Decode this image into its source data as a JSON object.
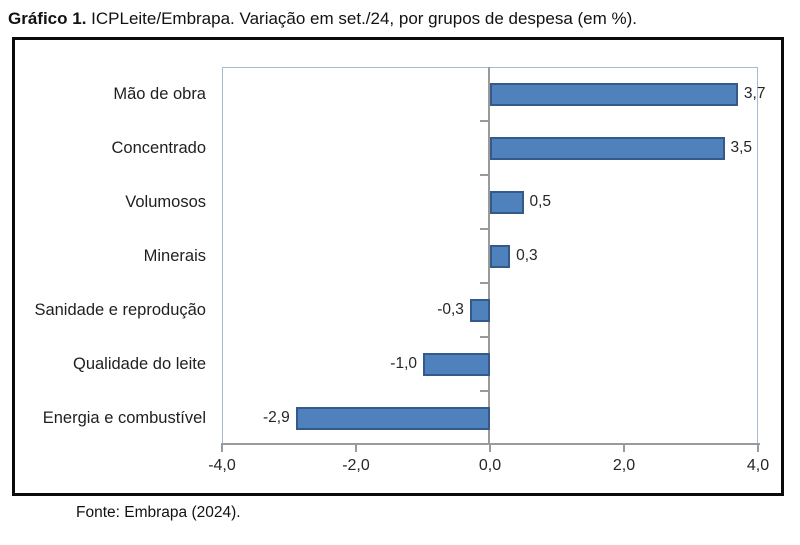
{
  "title": {
    "prefix": "Gráfico 1.",
    "rest": " ICPLeite/Embrapa. Variação em set./24, por grupos de despesa (em %)."
  },
  "footer": "Fonte: Embrapa (2024).",
  "chart_data": {
    "type": "bar",
    "orientation": "horizontal",
    "title": "Gráfico 1. ICPLeite/Embrapa. Variação em set./24, por grupos de despesa (em %).",
    "source": "Fonte: Embrapa (2024).",
    "categories": [
      "Mão de obra",
      "Concentrado",
      "Volumosos",
      "Minerais",
      "Sanidade e reprodução",
      "Qualidade do leite",
      "Energia e combustível"
    ],
    "values": [
      3.7,
      3.5,
      0.5,
      0.3,
      -0.3,
      -1.0,
      -2.9
    ],
    "value_labels": [
      "3,7",
      "3,5",
      "0,5",
      "0,3",
      "-0,3",
      "-1,0",
      "-2,9"
    ],
    "xlim": [
      -4,
      4
    ],
    "x_ticks": [
      -4,
      -2,
      0,
      2,
      4
    ],
    "x_tick_labels": [
      "-4,0",
      "-2,0",
      "0,0",
      "2,0",
      "4,0"
    ],
    "xlabel": "",
    "ylabel": "",
    "grid": "off",
    "legend": "none",
    "bar_color": "#4F81BD",
    "bar_border_color": "#36598C",
    "plot_border_color": "#A6BAD4",
    "axis_color": "#9A9A9A",
    "frame_color": "#0A0A0A"
  }
}
